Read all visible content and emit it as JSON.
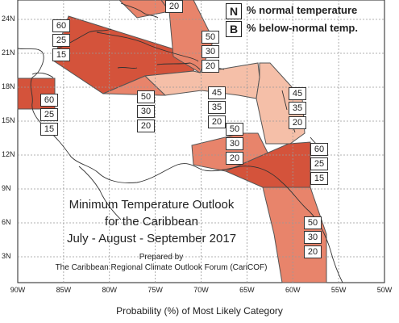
{
  "legend": {
    "items": [
      {
        "key": "N",
        "text": "% normal temperature"
      },
      {
        "key": "B",
        "text": "% below-normal temp."
      }
    ]
  },
  "title": {
    "line1": "Minimum Temperature Outlook",
    "line2": "for the Caribbean",
    "line3": "July - August - September 2017"
  },
  "credit": {
    "line1": "Prepared by",
    "line2": "The Caribbean Regional Climate Outlook Forum (CariCOF)"
  },
  "footer": "Probability (%) of Most Likely Category",
  "axes": {
    "lat_labels": [
      "24N",
      "21N",
      "18N",
      "15N",
      "12N",
      "9N",
      "6N",
      "3N"
    ],
    "lon_labels": [
      "90W",
      "85W",
      "80W",
      "75W",
      "70W",
      "65W",
      "60W",
      "55W",
      "50W"
    ]
  },
  "regions": [
    {
      "id": "bahamas-north",
      "color": "#e8846b",
      "probs": [
        "20"
      ]
    },
    {
      "id": "cuba-jamaica",
      "color": "#d4533b",
      "probs": [
        "60",
        "25",
        "15"
      ]
    },
    {
      "id": "bahamas-east",
      "color": "#e8846b",
      "probs": [
        "50",
        "30",
        "20"
      ]
    },
    {
      "id": "belize",
      "color": "#d4533b",
      "probs": [
        "60",
        "25",
        "15"
      ]
    },
    {
      "id": "central-caribbean",
      "color": "#e8846b",
      "probs": [
        "50",
        "30",
        "20"
      ]
    },
    {
      "id": "hispaniola-pr",
      "color": "#f5bfa8",
      "probs": [
        "45",
        "35",
        "20"
      ]
    },
    {
      "id": "lesser-antilles",
      "color": "#f5bfa8",
      "probs": [
        "45",
        "35",
        "20"
      ]
    },
    {
      "id": "abc-islands",
      "color": "#e8846b",
      "probs": [
        "50",
        "30",
        "20"
      ]
    },
    {
      "id": "trinidad-tobago",
      "color": "#d4533b",
      "probs": [
        "60",
        "25",
        "15"
      ]
    },
    {
      "id": "guianas",
      "color": "#e8846b",
      "probs": [
        "50",
        "30",
        "20"
      ]
    }
  ],
  "colors": {
    "high": "#d4533b",
    "mid": "#e8846b",
    "low": "#f5bfa8",
    "border": "#555555",
    "grid": "#999999"
  }
}
